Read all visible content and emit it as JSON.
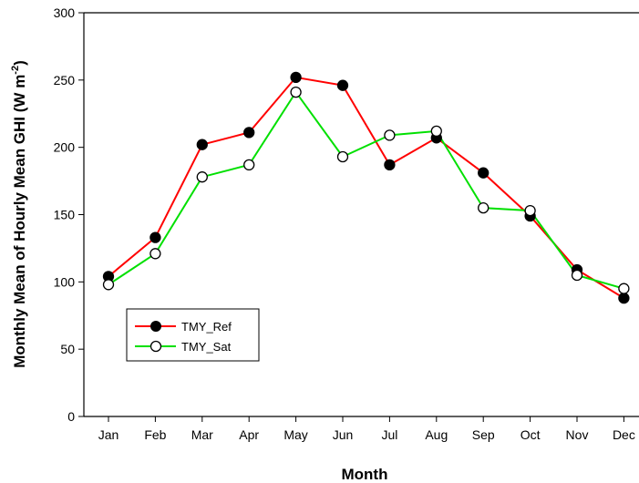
{
  "chart_data": {
    "type": "line",
    "title": "",
    "xlabel": "Month",
    "ylabel_text": "Monthly Mean of Hourly Mean GHI (W m",
    "ylabel_sup": "-2",
    "ylabel_close": ")",
    "categories": [
      "Jan",
      "Feb",
      "Mar",
      "Apr",
      "May",
      "Jun",
      "Jul",
      "Aug",
      "Sep",
      "Oct",
      "Nov",
      "Dec"
    ],
    "ylim": [
      0,
      300
    ],
    "yticks": [
      "0",
      "50",
      "100",
      "150",
      "200",
      "250",
      "300"
    ],
    "grid": false,
    "legend_position": "bottom-left",
    "series": [
      {
        "name": "TMY_Ref",
        "color": "#ff0000",
        "marker": "filled-circle",
        "marker_fill": "#000000",
        "values": [
          104,
          133,
          202,
          211,
          252,
          246,
          187,
          207,
          181,
          149,
          109,
          88
        ]
      },
      {
        "name": "TMY_Sat",
        "color": "#00e000",
        "marker": "open-circle",
        "marker_fill": "#ffffff",
        "values": [
          98,
          121,
          178,
          187,
          241,
          193,
          209,
          212,
          155,
          153,
          105,
          95
        ]
      }
    ]
  }
}
